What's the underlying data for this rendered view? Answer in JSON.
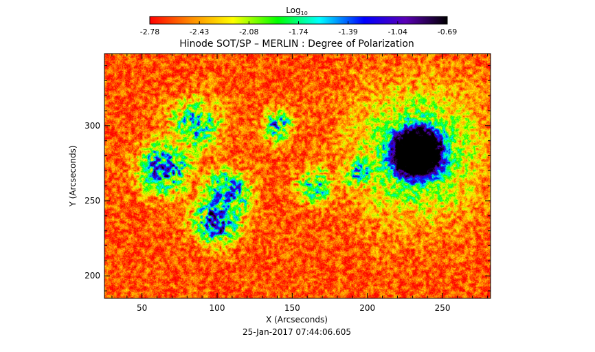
{
  "chart_data": {
    "type": "heatmap",
    "title": "Hinode SOT/SP – MERLIN : Degree of Polarization",
    "xlabel": "X (Arcseconds)",
    "ylabel": "Y (Arcseconds)",
    "xlim": [
      25,
      282
    ],
    "ylim": [
      185,
      348
    ],
    "x_ticks": [
      50,
      100,
      150,
      200,
      250
    ],
    "y_ticks": [
      200,
      250,
      300
    ],
    "colorbar": {
      "label_base": "Log",
      "label_sub": "10",
      "tick_labels": [
        "-2.78",
        "-2.43",
        "-2.08",
        "-1.74",
        "-1.39",
        "-1.04",
        "-0.69"
      ],
      "range": [
        -2.78,
        -0.69
      ],
      "colormap": [
        "#ff0000",
        "#ff8c00",
        "#ffff00",
        "#00ff00",
        "#00ffff",
        "#0000ff",
        "#5a00b4",
        "#000000"
      ]
    },
    "features": [
      {
        "kind": "sunspot",
        "x": 233,
        "y": 282,
        "radius": 18,
        "peak": -0.69
      },
      {
        "kind": "plage",
        "x": 65,
        "y": 272,
        "radius": 10,
        "peak": -1.2
      },
      {
        "kind": "plage",
        "x": 100,
        "y": 237,
        "radius": 9,
        "peak": -1.1
      },
      {
        "kind": "plage",
        "x": 107,
        "y": 255,
        "radius": 9,
        "peak": -1.3
      },
      {
        "kind": "plage",
        "x": 85,
        "y": 300,
        "radius": 10,
        "peak": -1.6
      },
      {
        "kind": "plage",
        "x": 140,
        "y": 300,
        "radius": 6,
        "peak": -1.5
      },
      {
        "kind": "plage",
        "x": 165,
        "y": 260,
        "radius": 7,
        "peak": -1.6
      },
      {
        "kind": "plage",
        "x": 195,
        "y": 268,
        "radius": 7,
        "peak": -1.6
      }
    ],
    "background_value": -2.6
  },
  "footer": {
    "timestamp": "25-Jan-2017 07:44:06.605"
  }
}
